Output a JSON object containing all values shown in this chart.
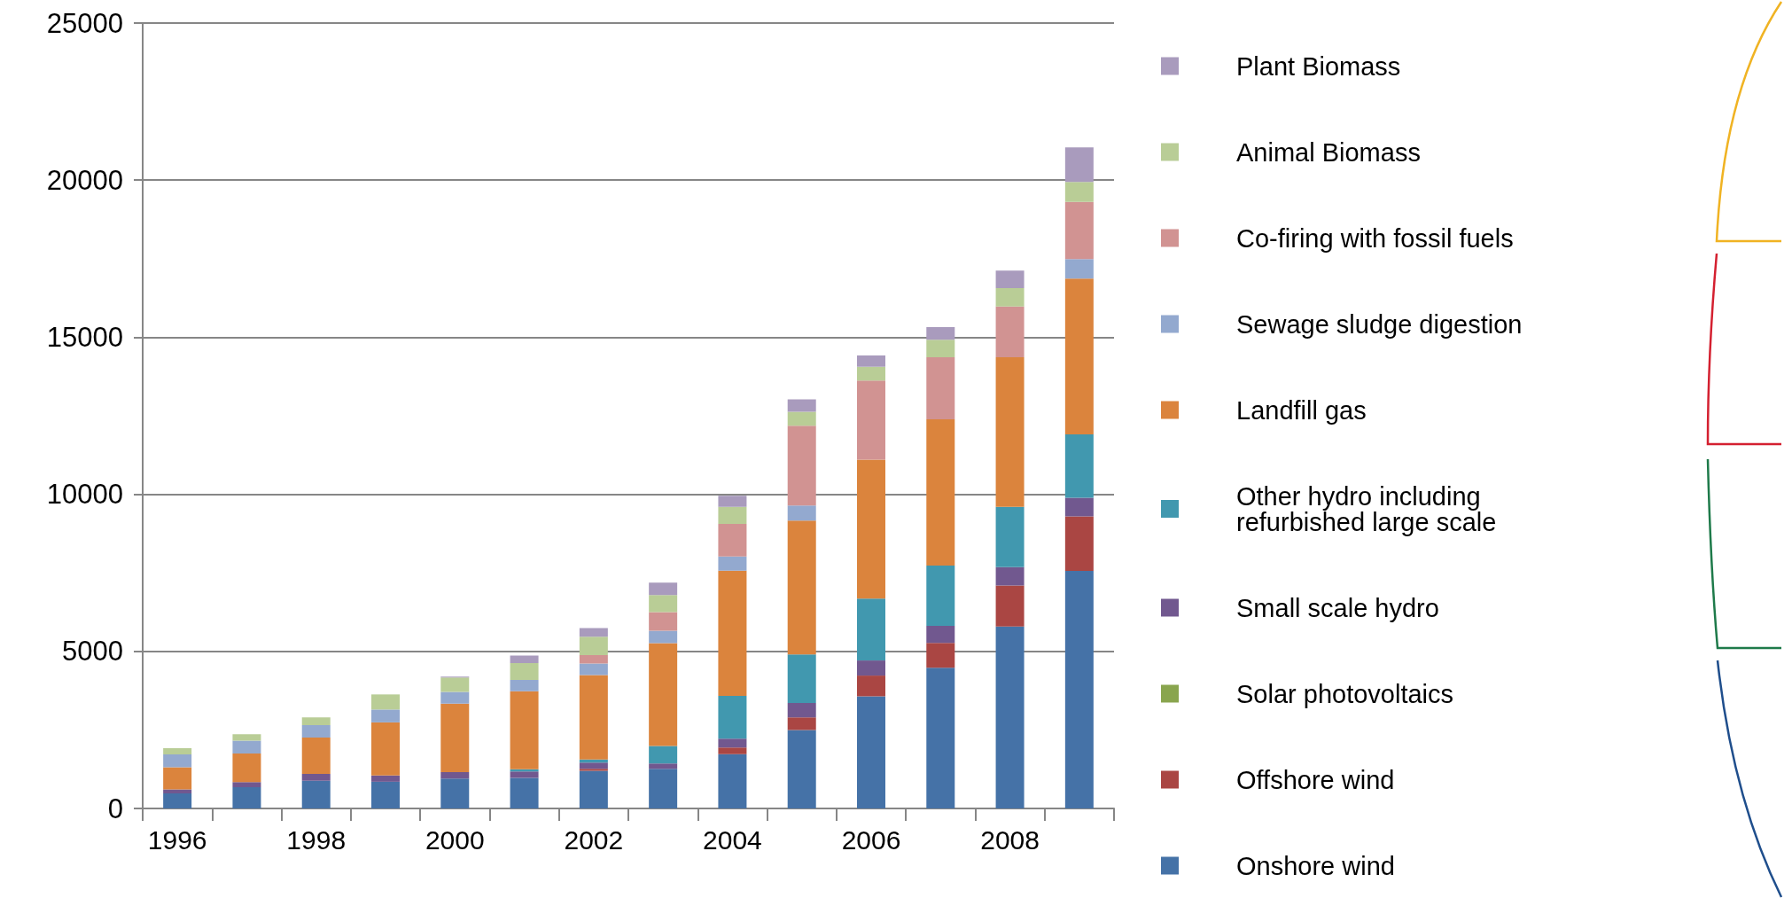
{
  "chart_data": {
    "type": "bar",
    "stacked": true,
    "categories": [
      "1996",
      null,
      "1998",
      null,
      "2000",
      null,
      "2002",
      null,
      "2004",
      null,
      "2006",
      null,
      "2008",
      null
    ],
    "ylim": [
      0,
      25000
    ],
    "yticks": [
      0,
      5000,
      10000,
      15000,
      20000,
      25000
    ],
    "grid": "y",
    "legend": "right",
    "series": [
      {
        "name": "Onshore wind",
        "color": "#4572a7",
        "values": [
          480,
          680,
          880,
          850,
          950,
          970,
          1200,
          1260,
          1730,
          2500,
          3570,
          4480,
          5790,
          7560
        ]
      },
      {
        "name": "Offshore wind",
        "color": "#aa4643",
        "values": [
          0,
          0,
          0,
          0,
          0,
          0,
          60,
          0,
          210,
          400,
          660,
          790,
          1310,
          1740
        ]
      },
      {
        "name": "Solar photovoltaics",
        "color": "#89a54e",
        "values": [
          0,
          0,
          0,
          0,
          0,
          0,
          0,
          0,
          0,
          0,
          0,
          0,
          0,
          0
        ]
      },
      {
        "name": "Small scale hydro",
        "color": "#71588f",
        "values": [
          130,
          160,
          220,
          200,
          210,
          210,
          200,
          170,
          280,
          460,
          480,
          540,
          580,
          590
        ]
      },
      {
        "name": "Other hydro including refurbished large scale",
        "color": "#4198af",
        "values": [
          0,
          0,
          0,
          0,
          0,
          70,
          100,
          560,
          1360,
          1540,
          1970,
          1920,
          1920,
          2020
        ]
      },
      {
        "name": "Landfill gas",
        "color": "#db843d",
        "values": [
          700,
          910,
          1160,
          1690,
          2180,
          2480,
          2690,
          3270,
          3990,
          4260,
          4420,
          4660,
          4760,
          4960
        ]
      },
      {
        "name": "Sewage sludge digestion",
        "color": "#93a9cf",
        "values": [
          410,
          410,
          390,
          410,
          370,
          360,
          360,
          400,
          450,
          480,
          0,
          0,
          0,
          620
        ]
      },
      {
        "name": "Co-firing with fossil fuels",
        "color": "#d19392",
        "values": [
          0,
          0,
          0,
          0,
          0,
          0,
          270,
          590,
          1040,
          2540,
          2520,
          1970,
          1620,
          1820
        ]
      },
      {
        "name": "Animal Biomass",
        "color": "#b9cd96",
        "values": [
          200,
          200,
          250,
          480,
          460,
          540,
          590,
          540,
          540,
          450,
          440,
          560,
          580,
          630
        ]
      },
      {
        "name": "Plant Biomass",
        "color": "#a99bbd",
        "values": [
          0,
          0,
          0,
          0,
          30,
          240,
          270,
          400,
          350,
          390,
          360,
          400,
          560,
          1100
        ]
      }
    ]
  }
}
